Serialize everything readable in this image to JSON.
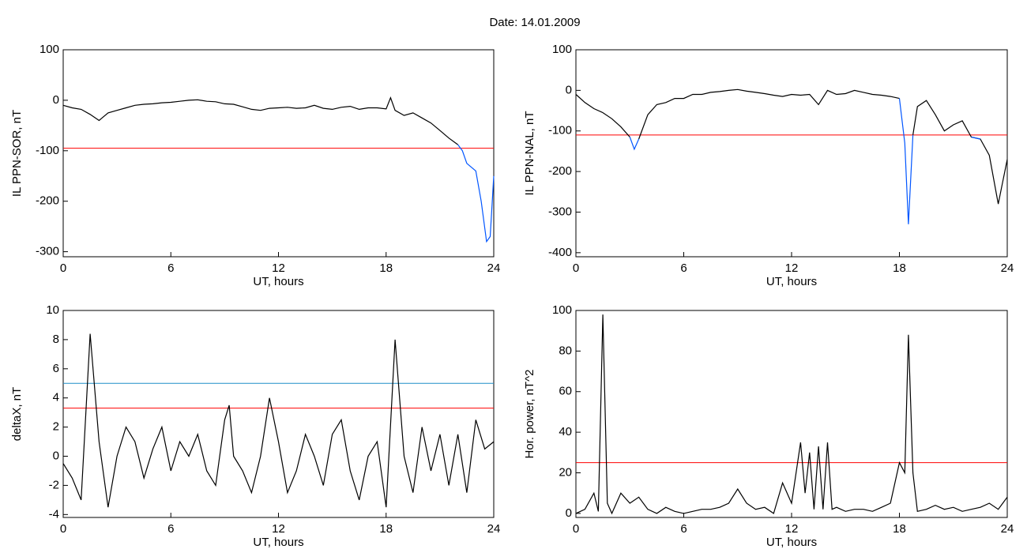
{
  "title": "Date:  14.01.2009",
  "chart_data": [
    {
      "type": "line",
      "xlabel": "UT, hours",
      "ylabel": "IL PPN-SOR, nT",
      "xlim": [
        0,
        24
      ],
      "xticks": [
        0,
        6,
        12,
        18,
        24
      ],
      "ylim": [
        -310,
        100
      ],
      "yticks": [
        -300,
        -200,
        -100,
        0,
        100
      ],
      "x": [
        0,
        0.5,
        1,
        1.5,
        2,
        2.5,
        3,
        3.5,
        4,
        4.5,
        5,
        5.5,
        6,
        6.5,
        7,
        7.5,
        8,
        8.5,
        9,
        9.5,
        10,
        10.5,
        11,
        11.5,
        12,
        12.5,
        13,
        13.5,
        14,
        14.5,
        15,
        15.5,
        16,
        16.5,
        17,
        17.5,
        18,
        18.25,
        18.5,
        19,
        19.5,
        20,
        20.5,
        21,
        21.5,
        22,
        22.25,
        22.5,
        23,
        23.3,
        23.6,
        23.8,
        24
      ],
      "series": [
        {
          "color": "#000000",
          "values": [
            -10,
            -15,
            -18,
            -28,
            -40,
            -25,
            -20,
            -15,
            -10,
            -8,
            -7,
            -5,
            -4,
            -2,
            0,
            1,
            -2,
            -3,
            -7,
            -8,
            -13,
            -18,
            -20,
            -16,
            -15,
            -14,
            -16,
            -15,
            -10,
            -16,
            -18,
            -14,
            -12,
            -18,
            -15,
            -15,
            -17,
            5,
            -20,
            -30,
            -25,
            -35,
            -45,
            -60,
            -75,
            -88,
            null,
            null,
            null,
            null,
            null,
            null,
            null
          ]
        },
        {
          "color": "#0055ff",
          "values": [
            null,
            null,
            null,
            null,
            null,
            null,
            null,
            null,
            null,
            null,
            null,
            null,
            null,
            null,
            null,
            null,
            null,
            null,
            null,
            null,
            null,
            null,
            null,
            null,
            null,
            null,
            null,
            null,
            null,
            null,
            null,
            null,
            null,
            null,
            null,
            null,
            null,
            null,
            null,
            null,
            null,
            null,
            null,
            null,
            null,
            -88,
            -100,
            -125,
            -140,
            -200,
            -280,
            -270,
            -150
          ]
        }
      ],
      "hlines": [
        {
          "value": -95,
          "color": "#ff0000"
        }
      ]
    },
    {
      "type": "line",
      "xlabel": "UT, hours",
      "ylabel": "IL PPN-NAL, nT",
      "xlim": [
        0,
        24
      ],
      "xticks": [
        0,
        6,
        12,
        18,
        24
      ],
      "ylim": [
        -410,
        100
      ],
      "yticks": [
        -400,
        -300,
        -200,
        -100,
        0,
        100
      ],
      "x": [
        0,
        0.5,
        1,
        1.5,
        2,
        2.5,
        3,
        3.25,
        3.5,
        4,
        4.5,
        5,
        5.5,
        6,
        6.5,
        7,
        7.5,
        8,
        8.5,
        9,
        9.5,
        10,
        10.5,
        11,
        11.5,
        12,
        12.5,
        13,
        13.5,
        14,
        14.5,
        15,
        15.5,
        16,
        16.5,
        17,
        17.5,
        18,
        18.3,
        18.5,
        18.75,
        19,
        19.5,
        20,
        20.5,
        21,
        21.5,
        22,
        22.5,
        23,
        23.5,
        24
      ],
      "series": [
        {
          "color": "#000000",
          "values": [
            -10,
            -30,
            -45,
            -55,
            -70,
            -90,
            -115,
            null,
            -120,
            -60,
            -35,
            -30,
            -20,
            -20,
            -10,
            -10,
            -5,
            -3,
            0,
            2,
            -2,
            -5,
            -8,
            -12,
            -15,
            -10,
            -12,
            -10,
            -35,
            0,
            -10,
            -8,
            0,
            -5,
            -10,
            -12,
            -15,
            -20,
            null,
            null,
            -110,
            -40,
            -25,
            -60,
            -100,
            -85,
            -75,
            -115,
            -120,
            -160,
            -280,
            -170
          ]
        },
        {
          "color": "#0055ff",
          "values": [
            null,
            null,
            null,
            null,
            null,
            null,
            -115,
            -145,
            -120,
            null,
            null,
            null,
            null,
            null,
            null,
            null,
            null,
            null,
            null,
            null,
            null,
            null,
            null,
            null,
            null,
            null,
            null,
            null,
            null,
            null,
            null,
            null,
            null,
            null,
            null,
            null,
            null,
            -20,
            -130,
            -330,
            -110,
            null,
            null,
            null,
            null,
            null,
            null,
            -115,
            -120,
            null,
            null,
            null
          ]
        }
      ],
      "hlines": [
        {
          "value": -110,
          "color": "#ff0000"
        }
      ]
    },
    {
      "type": "line",
      "xlabel": "UT, hours",
      "ylabel": "deltaX, nT",
      "xlim": [
        0,
        24
      ],
      "xticks": [
        0,
        6,
        12,
        18,
        24
      ],
      "ylim": [
        -4.2,
        10
      ],
      "yticks": [
        -4,
        -2,
        0,
        2,
        4,
        6,
        8,
        10
      ],
      "x": [
        0,
        0.5,
        1,
        1.5,
        2,
        2.5,
        3,
        3.5,
        4,
        4.5,
        5,
        5.5,
        6,
        6.5,
        7,
        7.5,
        8,
        8.5,
        9,
        9.25,
        9.5,
        10,
        10.5,
        11,
        11.5,
        12,
        12.5,
        13,
        13.5,
        14,
        14.5,
        15,
        15.5,
        16,
        16.5,
        17,
        17.5,
        18,
        18.5,
        19,
        19.5,
        20,
        20.5,
        21,
        21.5,
        22,
        22.5,
        23,
        23.5,
        24
      ],
      "series": [
        {
          "color": "#000000",
          "values": [
            -0.5,
            -1.5,
            -3,
            8.4,
            1,
            -3.5,
            0,
            2,
            1,
            -1.5,
            0.5,
            2,
            -1,
            1,
            0,
            1.5,
            -1,
            -2,
            2.5,
            3.5,
            0,
            -1,
            -2.5,
            0,
            4,
            1,
            -2.5,
            -1,
            1.5,
            0,
            -2,
            1.5,
            2.5,
            -1,
            -3,
            0,
            1,
            -3.5,
            8,
            0,
            -2.5,
            2,
            -1,
            1.5,
            -2,
            1.5,
            -2.5,
            2.5,
            0.5,
            1
          ]
        }
      ],
      "hlines": [
        {
          "value": 5,
          "color": "#1f8fc8"
        },
        {
          "value": 3.3,
          "color": "#ff0000"
        }
      ]
    },
    {
      "type": "line",
      "xlabel": "UT, hours",
      "ylabel": "Hor. power, nT^2",
      "xlim": [
        0,
        24
      ],
      "xticks": [
        0,
        6,
        12,
        18,
        24
      ],
      "ylim": [
        -2,
        100
      ],
      "yticks": [
        0,
        20,
        40,
        60,
        80,
        100
      ],
      "x": [
        0,
        0.5,
        1,
        1.25,
        1.5,
        1.75,
        2,
        2.5,
        3,
        3.5,
        4,
        4.5,
        5,
        5.5,
        6,
        6.5,
        7,
        7.5,
        8,
        8.5,
        9,
        9.5,
        10,
        10.5,
        11,
        11.5,
        12,
        12.5,
        12.75,
        13,
        13.25,
        13.5,
        13.75,
        14,
        14.25,
        14.5,
        15,
        15.5,
        16,
        16.5,
        17,
        17.5,
        18,
        18.3,
        18.5,
        18.75,
        19,
        19.5,
        20,
        20.5,
        21,
        21.5,
        22,
        22.5,
        23,
        23.5,
        24
      ],
      "series": [
        {
          "color": "#000000",
          "values": [
            0,
            2,
            10,
            1,
            98,
            5,
            0,
            10,
            5,
            8,
            2,
            0,
            3,
            1,
            0,
            1,
            2,
            2,
            3,
            5,
            12,
            5,
            2,
            3,
            0,
            15,
            5,
            35,
            10,
            30,
            2,
            33,
            2,
            35,
            2,
            3,
            1,
            2,
            2,
            1,
            3,
            5,
            25,
            20,
            88,
            20,
            1,
            2,
            4,
            2,
            3,
            1,
            2,
            3,
            5,
            2,
            8
          ]
        }
      ],
      "hlines": [
        {
          "value": 25,
          "color": "#ff0000"
        }
      ]
    }
  ]
}
